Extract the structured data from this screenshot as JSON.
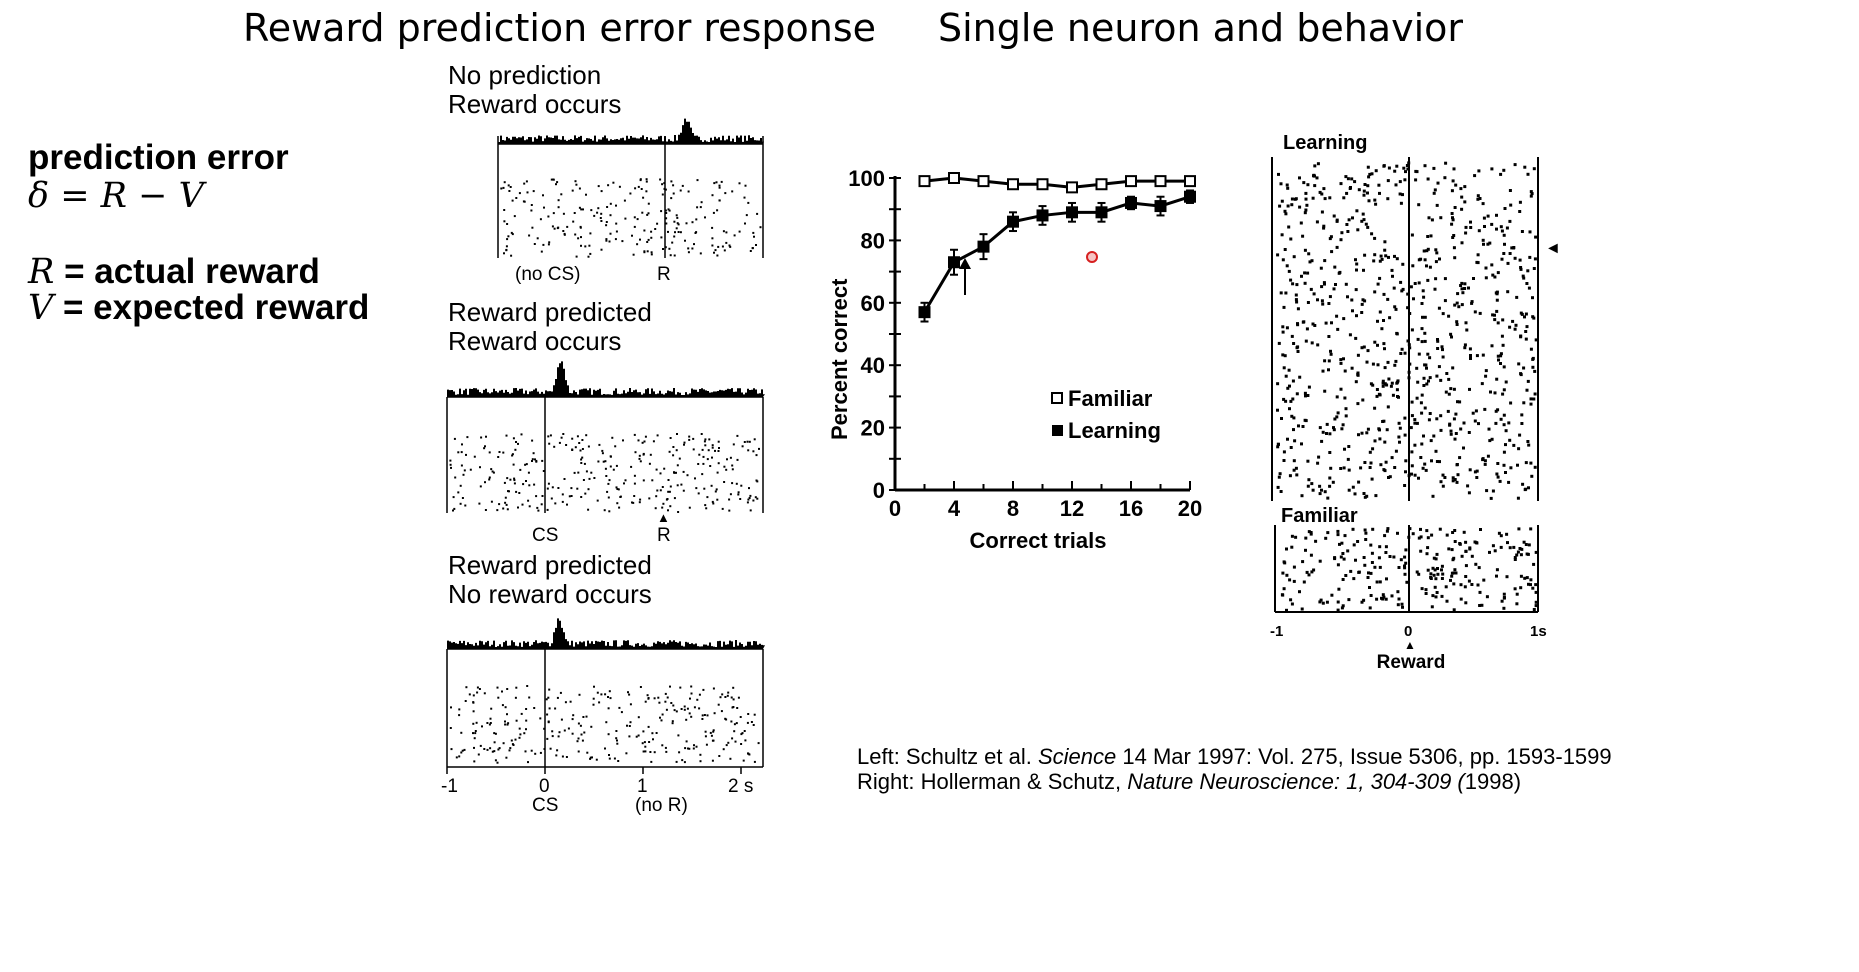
{
  "left_title": "Reward prediction error response",
  "right_title": "Single neuron and behavior",
  "formula": {
    "heading": "prediction error",
    "equation": "δ = R − V",
    "r_symbol": "R",
    "r_text": " = actual reward",
    "v_symbol": "V",
    "v_text": " = expected reward"
  },
  "panels": {
    "p1": {
      "line1": "No prediction",
      "line2": "Reward occurs",
      "lbl_a": "(no CS)",
      "lbl_b": "R"
    },
    "p2": {
      "line1": "Reward predicted",
      "line2": "Reward occurs",
      "lbl_a": "CS",
      "lbl_b": "R",
      "arrow": "▲"
    },
    "p3": {
      "line1": "Reward predicted",
      "line2": "No reward occurs",
      "ticks": [
        "-1",
        "0",
        "1",
        "2 s"
      ],
      "lbl_a": "CS",
      "lbl_b": "(no R)"
    }
  },
  "behavior_chart": {
    "chart_data": {
      "type": "line",
      "xlabel": "Correct trials",
      "ylabel": "Percent correct",
      "xlim": [
        0,
        20
      ],
      "ylim": [
        0,
        100
      ],
      "xticks": [
        "0",
        "4",
        "8",
        "12",
        "16",
        "20"
      ],
      "yticks": [
        "0",
        "20",
        "40",
        "60",
        "80",
        "100"
      ],
      "legend_position": "center-right",
      "series": [
        {
          "name": "Familiar",
          "marker": "open-square",
          "x": [
            2,
            4,
            6,
            8,
            10,
            12,
            14,
            16,
            18,
            20
          ],
          "y": [
            99,
            100,
            99,
            98,
            98,
            97,
            98,
            99,
            99,
            99
          ]
        },
        {
          "name": "Learning",
          "marker": "filled-square",
          "x": [
            2,
            4,
            6,
            8,
            10,
            12,
            14,
            16,
            18,
            20
          ],
          "y": [
            57,
            73,
            78,
            86,
            88,
            89,
            89,
            92,
            91,
            94
          ],
          "err": [
            3,
            4,
            4,
            3,
            3,
            3,
            3,
            2,
            3,
            2
          ]
        }
      ]
    }
  },
  "raster_right": {
    "learning_label": "Learning",
    "familiar_label": "Familiar",
    "ticks": [
      "-1",
      "0",
      "1s"
    ],
    "reward_label": "Reward",
    "arrow": "▲",
    "side_arrow": "◄"
  },
  "citations": {
    "left_prefix": "Left: Schultz et al. ",
    "left_journal": "Science",
    "left_rest": "  14 Mar 1997: Vol. 275, Issue 5306, pp. 1593-1599",
    "right_prefix": "Right: Hollerman & Schutz, ",
    "right_journal": "Nature Neuroscience: 1, 304-309 (",
    "right_rest": "1998)"
  }
}
